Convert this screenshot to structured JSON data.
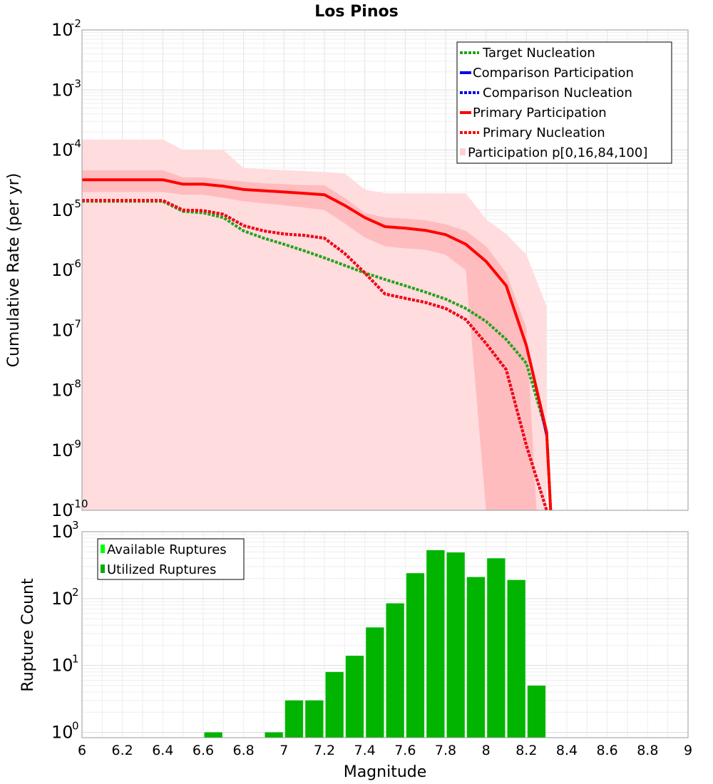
{
  "chart_data": [
    {
      "type": "line",
      "title": "Los Pinos",
      "xlabel": "",
      "ylabel": "Cumulative Rate (per yr)",
      "xlim": [
        6,
        9
      ],
      "ylim_log10": [
        -10,
        -2
      ],
      "yscale": "log",
      "y_tick_labels": [
        {
          "base": "10",
          "exp": "-2"
        },
        {
          "base": "10",
          "exp": "-3"
        },
        {
          "base": "10",
          "exp": "-4"
        },
        {
          "base": "10",
          "exp": "-5"
        },
        {
          "base": "10",
          "exp": "-6"
        },
        {
          "base": "10",
          "exp": "-7"
        },
        {
          "base": "10",
          "exp": "-8"
        },
        {
          "base": "10",
          "exp": "-9"
        },
        {
          "base": "10",
          "exp": "-10"
        }
      ],
      "legend_position": "top-right",
      "legend": [
        {
          "label": "Target Nucleation",
          "color": "#22a31a",
          "style": "dotted"
        },
        {
          "label": "Comparison Participation",
          "color": "#0000ee",
          "style": "solid"
        },
        {
          "label": "Comparison Nucleation",
          "color": "#0000ee",
          "style": "dotted"
        },
        {
          "label": "Primary Participation",
          "color": "#ff0000",
          "style": "solid"
        },
        {
          "label": "Primary Nucleation",
          "color": "#ff0000",
          "style": "dotted"
        },
        {
          "label": "Participation p[0,16,84,100]",
          "color": "#ffd9db",
          "style": "band"
        }
      ],
      "bands": [
        {
          "name": "p0-p100",
          "color": "#ffdcde",
          "x": [
            6.0,
            6.4,
            6.5,
            6.7,
            6.8,
            6.9,
            7.2,
            7.3,
            7.4,
            7.5,
            7.7,
            7.8,
            7.9,
            8.0,
            8.1,
            8.2,
            8.3
          ],
          "upper": [
            0.00015,
            0.00015,
            0.0001,
            0.0001,
            5e-05,
            4.8e-05,
            4.3e-05,
            4.1e-05,
            2.2e-05,
            1.9e-05,
            1.9e-05,
            1.9e-05,
            1.9e-05,
            7e-06,
            4e-06,
            1.8e-06,
            2.5e-07
          ],
          "lower": [
            1e-10,
            1e-10,
            1e-10,
            1e-10,
            1e-10,
            1e-10,
            1e-10,
            1e-10,
            1e-10,
            1e-10,
            1e-10,
            1e-10,
            1e-10,
            1e-10,
            1e-10,
            1e-10,
            1e-10
          ]
        },
        {
          "name": "p16-p84",
          "color": "#ffbcbe",
          "x": [
            6.0,
            6.4,
            6.5,
            6.6,
            6.7,
            6.8,
            6.9,
            7.0,
            7.1,
            7.2,
            7.3,
            7.4,
            7.5,
            7.6,
            7.7,
            7.8,
            7.9,
            8.0,
            8.1,
            8.2,
            8.25
          ],
          "upper": [
            4.6e-05,
            4.6e-05,
            3.5e-05,
            3.5e-05,
            3.2e-05,
            3e-05,
            2.8e-05,
            2.7e-05,
            2.6e-05,
            2.6e-05,
            1.6e-05,
            9e-06,
            7.5e-06,
            7.2e-06,
            6.8e-06,
            5.8e-06,
            4.5e-06,
            2.5e-06,
            9e-07,
            1.1e-07,
            1e-10
          ],
          "lower": [
            2e-05,
            2e-05,
            1.8e-05,
            1.8e-05,
            1.6e-05,
            1.4e-05,
            1.3e-05,
            1.2e-05,
            1.1e-05,
            1e-05,
            6e-06,
            3.5e-06,
            2.5e-06,
            2.3e-06,
            2.2e-06,
            1.8e-06,
            1e-06,
            1e-10,
            1e-10,
            1e-10,
            1e-10
          ]
        }
      ],
      "series": [
        {
          "name": "Target Nucleation",
          "color": "#22a31a",
          "style": "dotted",
          "x": [
            6.0,
            6.4,
            6.5,
            6.6,
            6.7,
            6.8,
            6.9,
            7.0,
            7.1,
            7.2,
            7.3,
            7.4,
            7.5,
            7.6,
            7.7,
            7.8,
            7.9,
            8.0,
            8.1,
            8.2,
            8.3,
            8.32
          ],
          "values": [
            1.4e-05,
            1.4e-05,
            9.5e-06,
            9e-06,
            7.5e-06,
            4.5e-06,
            3.4e-06,
            2.7e-06,
            2.1e-06,
            1.6e-06,
            1.2e-06,
            9e-07,
            7e-07,
            5.5e-07,
            4.3e-07,
            3.3e-07,
            2.3e-07,
            1.4e-07,
            7e-08,
            2.8e-08,
            2e-09,
            1e-10
          ]
        },
        {
          "name": "Comparison Participation",
          "color": "#0000ee",
          "style": "solid",
          "x": [
            6.0,
            6.4,
            6.5,
            6.6,
            6.7,
            6.8,
            6.9,
            7.0,
            7.1,
            7.2,
            7.3,
            7.4,
            7.5,
            7.6,
            7.7,
            7.8,
            7.9,
            8.0,
            8.1,
            8.2,
            8.3,
            8.32
          ],
          "values": [
            3.2e-05,
            3.2e-05,
            2.7e-05,
            2.7e-05,
            2.5e-05,
            2.2e-05,
            2.1e-05,
            2e-05,
            1.9e-05,
            1.8e-05,
            1.2e-05,
            7.5e-06,
            5.3e-06,
            5e-06,
            4.6e-06,
            3.9e-06,
            2.7e-06,
            1.4e-06,
            5.5e-07,
            5.5e-08,
            1.6e-09,
            1e-10
          ]
        },
        {
          "name": "Comparison Nucleation",
          "color": "#0000ee",
          "style": "dotted",
          "x": [
            6.0,
            6.4,
            6.5,
            6.6,
            6.7,
            6.8,
            6.9,
            7.0,
            7.1,
            7.2,
            7.3,
            7.4,
            7.5,
            7.6,
            7.7,
            7.8,
            7.9,
            8.0,
            8.1,
            8.2,
            8.3
          ],
          "values": [
            1.45e-05,
            1.45e-05,
            1e-05,
            9.8e-06,
            8.5e-06,
            5.5e-06,
            4.5e-06,
            4e-06,
            3.8e-06,
            3.4e-06,
            1.9e-06,
            9e-07,
            4e-07,
            3.4e-07,
            2.9e-07,
            2.3e-07,
            1.5e-07,
            6e-08,
            2.2e-08,
            1.2e-09,
            1e-10
          ]
        },
        {
          "name": "Primary Participation",
          "color": "#ff0000",
          "style": "solid",
          "x": [
            6.0,
            6.4,
            6.5,
            6.6,
            6.7,
            6.8,
            6.9,
            7.0,
            7.1,
            7.2,
            7.3,
            7.4,
            7.5,
            7.6,
            7.7,
            7.8,
            7.9,
            8.0,
            8.1,
            8.2,
            8.3,
            8.32
          ],
          "values": [
            3.2e-05,
            3.2e-05,
            2.7e-05,
            2.7e-05,
            2.5e-05,
            2.2e-05,
            2.1e-05,
            2e-05,
            1.9e-05,
            1.8e-05,
            1.2e-05,
            7.5e-06,
            5.3e-06,
            5e-06,
            4.6e-06,
            3.9e-06,
            2.7e-06,
            1.4e-06,
            5.5e-07,
            5.5e-08,
            2e-09,
            1e-10
          ]
        },
        {
          "name": "Primary Nucleation",
          "color": "#ff0000",
          "style": "dotted",
          "x": [
            6.0,
            6.4,
            6.5,
            6.6,
            6.7,
            6.8,
            6.9,
            7.0,
            7.1,
            7.2,
            7.3,
            7.4,
            7.5,
            7.6,
            7.7,
            7.8,
            7.9,
            8.0,
            8.1,
            8.2,
            8.3
          ],
          "values": [
            1.45e-05,
            1.45e-05,
            1e-05,
            9.8e-06,
            8.5e-06,
            5.5e-06,
            4.5e-06,
            4e-06,
            3.8e-06,
            3.4e-06,
            1.9e-06,
            9e-07,
            4e-07,
            3.4e-07,
            2.9e-07,
            2.3e-07,
            1.5e-07,
            6e-08,
            2.2e-08,
            1.2e-09,
            1e-10
          ]
        }
      ]
    },
    {
      "type": "bar",
      "title": "",
      "xlabel": "Magnitude",
      "ylabel": "Rupture Count",
      "xlim": [
        6,
        9
      ],
      "yscale": "log",
      "ylim_log10": [
        -0.08,
        3
      ],
      "x_ticks": [
        "6",
        "6.2",
        "6.4",
        "6.6",
        "6.8",
        "7",
        "7.2",
        "7.4",
        "7.6",
        "7.8",
        "8",
        "8.2",
        "8.4",
        "8.6",
        "8.8",
        "9"
      ],
      "y_tick_labels": [
        {
          "base": "10",
          "exp": "3"
        },
        {
          "base": "10",
          "exp": "2"
        },
        {
          "base": "10",
          "exp": "1"
        },
        {
          "base": "10",
          "exp": "0"
        }
      ],
      "legend_position": "top-left",
      "legend": [
        {
          "label": "Available Ruptures",
          "color": "#00ff00"
        },
        {
          "label": "Utilized Ruptures",
          "color": "#00b000"
        }
      ],
      "bar_width": 0.1,
      "series": [
        {
          "name": "Utilized Ruptures",
          "color": "#00b400",
          "x": [
            6.6,
            6.9,
            7.0,
            7.1,
            7.2,
            7.3,
            7.4,
            7.5,
            7.6,
            7.7,
            7.8,
            7.9,
            8.0,
            8.1,
            8.2
          ],
          "values": [
            1,
            1,
            3,
            3,
            8,
            14,
            37,
            85,
            240,
            530,
            490,
            210,
            400,
            190,
            5
          ]
        }
      ]
    }
  ]
}
